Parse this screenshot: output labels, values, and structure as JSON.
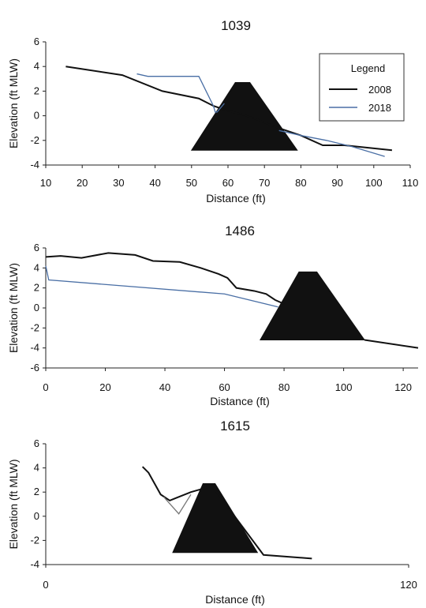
{
  "chart_data": [
    {
      "type": "line",
      "title": "1039",
      "xlabel": "Distance (ft)",
      "ylabel": "Elevation (ft MLW)",
      "xlim": [
        10,
        110
      ],
      "ylim": [
        -4,
        6
      ],
      "xticks": [
        10,
        20,
        30,
        40,
        50,
        60,
        70,
        80,
        90,
        100,
        110
      ],
      "yticks": [
        -4,
        -2,
        0,
        2,
        4,
        6
      ],
      "legend": {
        "title": "Legend",
        "placement": "top-right"
      },
      "series": [
        {
          "name": "2008",
          "color": "#111111",
          "x": [
            15.5,
            31,
            42,
            52,
            56,
            60,
            64,
            68,
            73,
            80,
            86,
            92,
            105
          ],
          "y": [
            4.0,
            3.3,
            2.0,
            1.4,
            0.8,
            0.4,
            0.1,
            -0.3,
            -0.9,
            -1.6,
            -2.4,
            -2.4,
            -2.8
          ]
        },
        {
          "name": "2018",
          "color": "#4a6fa5",
          "x": [
            35,
            38,
            52,
            54,
            56,
            56.5,
            57,
            59
          ],
          "y": [
            3.4,
            3.2,
            3.2,
            2.0,
            0.8,
            0.3,
            0.3,
            1.0
          ],
          "x2": [
            74,
            80,
            87,
            94,
            103
          ],
          "y2": [
            -1.2,
            -1.6,
            -2.0,
            -2.5,
            -3.3
          ]
        }
      ],
      "features": [
        {
          "name": "rock-structure",
          "color": "#111111",
          "x": [
            50,
            62,
            66,
            79
          ],
          "y": [
            -2.8,
            2.7,
            2.7,
            -2.8
          ]
        }
      ]
    },
    {
      "type": "line",
      "title": "1486",
      "xlabel": "Distance (ft)",
      "ylabel": "Elevation (ft MLW)",
      "xlim": [
        0,
        125
      ],
      "ylim": [
        -6,
        6
      ],
      "xticks": [
        0,
        20,
        40,
        60,
        80,
        100,
        120
      ],
      "yticks": [
        -6,
        -4,
        -2,
        0,
        2,
        4,
        6
      ],
      "series": [
        {
          "name": "2008",
          "color": "#111111",
          "x": [
            0,
            5,
            12,
            21,
            30,
            36,
            45,
            52,
            58,
            61,
            64,
            70,
            74,
            77,
            80
          ],
          "y": [
            5.1,
            5.2,
            5.0,
            5.5,
            5.3,
            4.7,
            4.6,
            4.0,
            3.4,
            3.0,
            2.0,
            1.7,
            1.4,
            0.8,
            0.4
          ]
        },
        {
          "name": "2018",
          "color": "#4a6fa5",
          "x": [
            0,
            1,
            60,
            78
          ],
          "y": [
            4.2,
            2.8,
            1.4,
            0.1
          ]
        },
        {
          "name": "",
          "color": "#111111",
          "x": [
            107,
            125
          ],
          "y": [
            -3.2,
            -4.0
          ]
        }
      ],
      "features": [
        {
          "name": "rock-structure",
          "color": "#111111",
          "x": [
            72,
            85,
            91,
            107
          ],
          "y": [
            -3.2,
            3.6,
            3.6,
            -3.2
          ]
        }
      ]
    },
    {
      "type": "line",
      "title": "1615",
      "xlabel": "Distance (ft)",
      "ylabel": "Elevation (ft MLW)",
      "xlim": [
        0,
        120
      ],
      "ylim": [
        -4,
        6
      ],
      "xticks": [
        0,
        120
      ],
      "yticks": [
        -4,
        -2,
        0,
        2,
        4,
        6
      ],
      "series": [
        {
          "name": "2008",
          "color": "#111111",
          "x": [
            32,
            34,
            38,
            41,
            43,
            48,
            55,
            72,
            88
          ],
          "y": [
            4.1,
            3.6,
            1.8,
            1.3,
            1.5,
            2.0,
            2.5,
            -3.2,
            -3.5
          ]
        },
        {
          "name": "2018",
          "color": "#777777",
          "x": [
            39,
            44,
            48
          ],
          "y": [
            1.6,
            0.2,
            1.8
          ]
        }
      ],
      "features": [
        {
          "name": "rock-structure",
          "color": "#111111",
          "x": [
            42,
            52,
            56,
            70
          ],
          "y": [
            -3.0,
            2.7,
            2.7,
            -3.0
          ]
        }
      ]
    }
  ]
}
